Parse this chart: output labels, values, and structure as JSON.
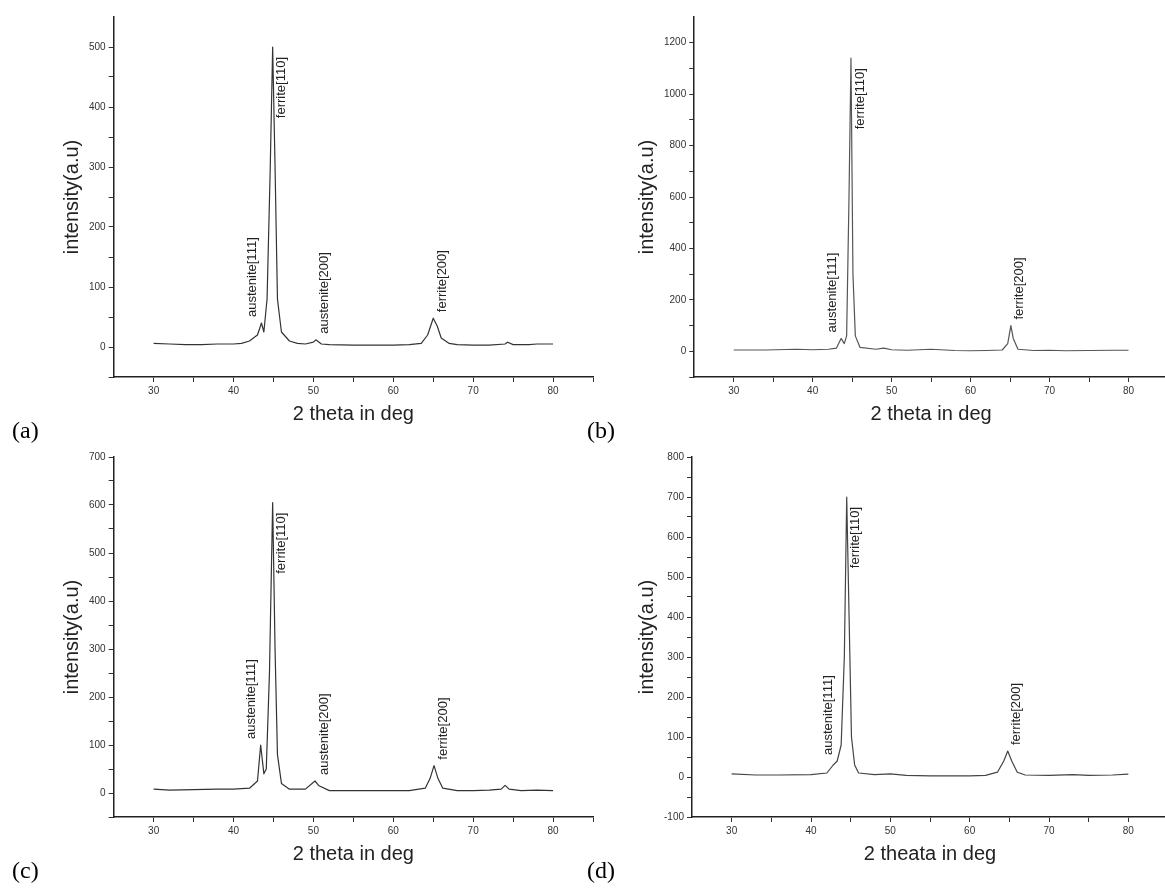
{
  "chart_data": [
    {
      "type": "line",
      "xlabel": "2 theta in deg",
      "ylabel": "intensity(a.u)",
      "color": "#333333",
      "marker": "none",
      "grid": false,
      "x": [
        30,
        32,
        34,
        36,
        38,
        40,
        41,
        42,
        43,
        43.5,
        43.8,
        44.2,
        44.6,
        44.9,
        45.2,
        45.5,
        46,
        47,
        48,
        49,
        50,
        50.3,
        51,
        52,
        55,
        58,
        60,
        62,
        63.5,
        64.3,
        65,
        65.5,
        66,
        67,
        68,
        70,
        72,
        74,
        74.3,
        75,
        77,
        78,
        80
      ],
      "values": [
        6,
        5,
        4,
        4,
        5,
        5,
        6,
        10,
        20,
        40,
        25,
        80,
        300,
        500,
        300,
        80,
        25,
        10,
        6,
        5,
        8,
        12,
        5,
        4,
        3,
        3,
        3,
        4,
        6,
        20,
        48,
        35,
        15,
        6,
        4,
        3,
        3,
        5,
        8,
        4,
        4,
        5,
        5
      ],
      "xlim": [
        25,
        85
      ],
      "xticks": [
        30,
        {
          "value": 35,
          "label": null
        },
        40,
        {
          "value": 45,
          "label": null
        },
        50,
        {
          "value": 55,
          "label": null
        },
        60,
        {
          "value": 65,
          "label": null
        },
        70,
        {
          "value": 75,
          "label": null
        },
        80,
        {
          "value": 85,
          "label": null
        }
      ],
      "ylim": [
        -50,
        550
      ],
      "yticks": [
        {
          "value": -50,
          "label": null
        },
        0,
        {
          "value": 50,
          "label": null
        },
        100,
        {
          "value": 150,
          "label": null
        },
        200,
        {
          "value": 250,
          "label": null
        },
        300,
        {
          "value": 350,
          "label": null
        },
        400,
        {
          "value": 450,
          "label": null
        },
        500
      ],
      "annotations": [
        "(a)",
        {
          "text": "austenite[111]",
          "x": 43.5,
          "y": 40
        },
        {
          "text": "ferrite[110]",
          "x": 44.9,
          "y": 500
        },
        {
          "text": "austenite[200]",
          "x": 50.3,
          "y": 12
        },
        {
          "text": "ferrite[200]",
          "x": 65,
          "y": 48
        }
      ]
    },
    {
      "type": "line",
      "xlabel": "2 theta in deg",
      "ylabel": "intensity(a.u)",
      "color": "#555555",
      "marker": "none",
      "grid": false,
      "x": [
        30,
        34,
        38,
        40,
        42,
        43,
        43.6,
        44,
        44.3,
        44.6,
        44.85,
        45.1,
        45.4,
        46,
        48,
        49,
        50,
        52,
        55,
        58,
        60,
        62,
        64,
        64.7,
        65.1,
        65.4,
        66,
        68,
        70,
        72,
        75,
        78,
        80
      ],
      "values": [
        5,
        5,
        8,
        6,
        8,
        12,
        50,
        30,
        60,
        600,
        1140,
        300,
        60,
        15,
        8,
        12,
        6,
        4,
        8,
        3,
        2,
        3,
        5,
        30,
        100,
        50,
        8,
        3,
        4,
        2,
        3,
        4,
        4
      ],
      "xlim": [
        25,
        85
      ],
      "xticks": [
        30,
        {
          "value": 35,
          "label": null
        },
        40,
        {
          "value": 45,
          "label": null
        },
        50,
        {
          "value": 55,
          "label": null
        },
        60,
        {
          "value": 65,
          "label": null
        },
        70,
        {
          "value": 75,
          "label": null
        },
        80,
        {
          "value": 85,
          "label": null
        }
      ],
      "ylim": [
        -100,
        1300
      ],
      "yticks": [
        {
          "value": -100,
          "label": null
        },
        0,
        {
          "value": 100,
          "label": null
        },
        200,
        {
          "value": 300,
          "label": null
        },
        400,
        {
          "value": 500,
          "label": null
        },
        600,
        {
          "value": 700,
          "label": null
        },
        800,
        {
          "value": 900,
          "label": null
        },
        1000,
        {
          "value": 1100,
          "label": null
        },
        1200
      ],
      "annotations": [
        "(b)",
        {
          "text": "austenite[111]",
          "x": 43.6,
          "y": 50
        },
        {
          "text": "ferrite[110]",
          "x": 44.85,
          "y": 1140
        },
        {
          "text": "ferrite[200]",
          "x": 65.1,
          "y": 100
        }
      ]
    },
    {
      "type": "line",
      "xlabel": "2 theta in deg",
      "ylabel": "intensity(a.u)",
      "color": "#333333",
      "marker": "none",
      "grid": false,
      "x": [
        30,
        32,
        35,
        38,
        40,
        42,
        43,
        43.4,
        43.8,
        44.1,
        44.5,
        44.9,
        45.2,
        45.5,
        46,
        47,
        49,
        50.2,
        50.7,
        52,
        55,
        58,
        60,
        62,
        64,
        64.6,
        65.1,
        65.6,
        66.2,
        68,
        70,
        72,
        73.5,
        74,
        74.5,
        76,
        78,
        80
      ],
      "values": [
        8,
        6,
        7,
        8,
        8,
        10,
        25,
        100,
        40,
        50,
        250,
        605,
        300,
        80,
        20,
        8,
        8,
        25,
        15,
        5,
        5,
        5,
        5,
        5,
        10,
        30,
        57,
        30,
        10,
        5,
        5,
        6,
        8,
        16,
        8,
        5,
        6,
        5
      ],
      "xlim": [
        25,
        85
      ],
      "xticks": [
        30,
        {
          "value": 35,
          "label": null
        },
        40,
        {
          "value": 45,
          "label": null
        },
        50,
        {
          "value": 55,
          "label": null
        },
        60,
        {
          "value": 65,
          "label": null
        },
        70,
        {
          "value": 75,
          "label": null
        },
        80,
        {
          "value": 85,
          "label": null
        }
      ],
      "ylim": [
        -50,
        700
      ],
      "yticks": [
        {
          "value": -50,
          "label": null
        },
        0,
        {
          "value": 50,
          "label": null
        },
        100,
        {
          "value": 150,
          "label": null
        },
        200,
        {
          "value": 250,
          "label": null
        },
        300,
        {
          "value": 350,
          "label": null
        },
        400,
        {
          "value": 450,
          "label": null
        },
        500,
        {
          "value": 550,
          "label": null
        },
        600,
        {
          "value": 650,
          "label": null
        },
        700
      ],
      "annotations": [
        "(c)",
        {
          "text": "austenite[111]",
          "x": 43.4,
          "y": 100
        },
        {
          "text": "ferrite[110]",
          "x": 44.9,
          "y": 605
        },
        {
          "text": "austenite[200]",
          "x": 50.2,
          "y": 25
        },
        {
          "text": "ferrite[200]",
          "x": 65.1,
          "y": 57
        }
      ]
    },
    {
      "type": "line",
      "xlabel": "2 theata in deg",
      "ylabel": "intensity(a.u)",
      "color": "#444444",
      "marker": "none",
      "grid": false,
      "x": [
        30,
        33,
        36,
        40,
        42,
        42.8,
        43.3,
        43.8,
        44.2,
        44.5,
        44.8,
        45.1,
        45.5,
        46,
        48,
        50,
        52,
        55,
        58,
        60,
        62,
        63.5,
        64.3,
        64.8,
        65.3,
        66,
        67,
        70,
        73,
        75,
        78,
        80
      ],
      "values": [
        8,
        5,
        5,
        6,
        10,
        30,
        40,
        80,
        300,
        700,
        400,
        100,
        30,
        10,
        6,
        8,
        4,
        3,
        3,
        3,
        4,
        12,
        40,
        65,
        40,
        12,
        5,
        4,
        6,
        4,
        5,
        7
      ],
      "xlim": [
        25,
        85
      ],
      "xticks": [
        30,
        {
          "value": 35,
          "label": null
        },
        40,
        {
          "value": 45,
          "label": null
        },
        50,
        {
          "value": 55,
          "label": null
        },
        60,
        {
          "value": 65,
          "label": null
        },
        70,
        {
          "value": 75,
          "label": null
        },
        80,
        {
          "value": 85,
          "label": null
        }
      ],
      "ylim": [
        -100,
        800
      ],
      "yticks": [
        -100,
        {
          "value": -50,
          "label": null
        },
        0,
        {
          "value": 50,
          "label": null
        },
        100,
        {
          "value": 150,
          "label": null
        },
        200,
        {
          "value": 250,
          "label": null
        },
        300,
        {
          "value": 350,
          "label": null
        },
        400,
        {
          "value": 450,
          "label": null
        },
        500,
        {
          "value": 550,
          "label": null
        },
        600,
        {
          "value": 650,
          "label": null
        },
        700,
        {
          "value": 750,
          "label": null
        },
        800
      ],
      "annotations": [
        "(d)",
        {
          "text": "austenite[111]",
          "x": 43.3,
          "y": 40
        },
        {
          "text": "ferrite[110]",
          "x": 44.5,
          "y": 700
        },
        {
          "text": "ferrite[200]",
          "x": 64.8,
          "y": 65
        }
      ]
    }
  ]
}
